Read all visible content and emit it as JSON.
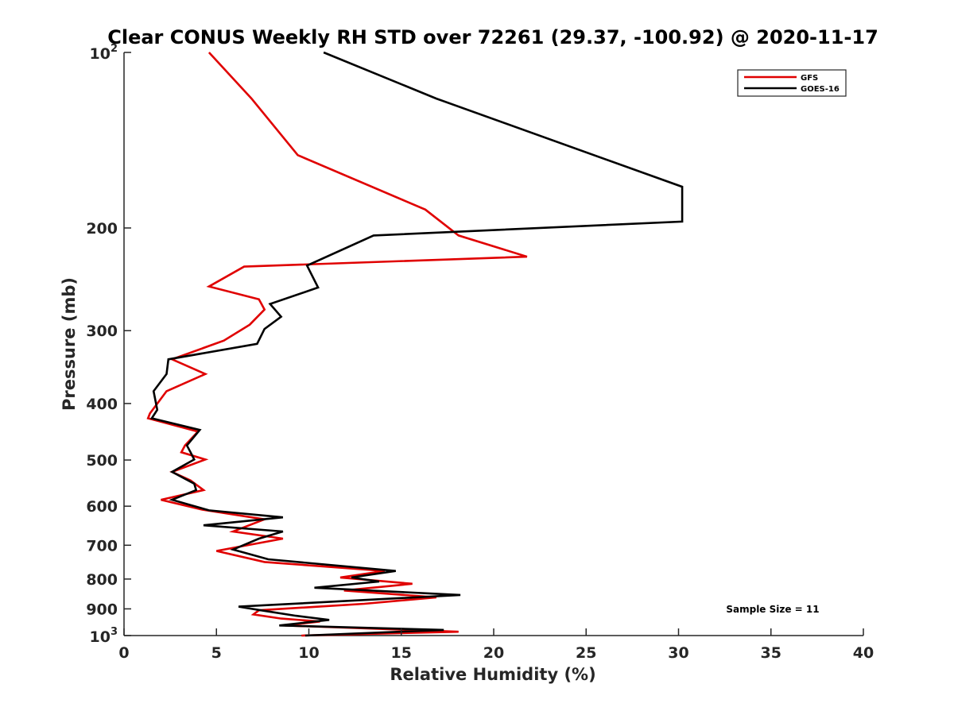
{
  "chart_data": {
    "type": "line",
    "title": "Clear CONUS Weekly RH STD over 72261 (29.37, -100.92) @ 2020-11-17",
    "xlabel": "Relative Humidity (%)",
    "ylabel": "Pressure (mb)",
    "xlim": [
      0,
      40
    ],
    "ylim": [
      100,
      1000
    ],
    "y_scale": "log",
    "y_reversed": true,
    "grid": false,
    "legend_position": "top-right",
    "x_ticks": [
      "0",
      "5",
      "10",
      "15",
      "20",
      "25",
      "30",
      "35",
      "40"
    ],
    "y_ticks": [
      {
        "value": 100,
        "base": "10",
        "exp": "2"
      },
      {
        "value": 200,
        "label": "200"
      },
      {
        "value": 300,
        "label": "300"
      },
      {
        "value": 400,
        "label": "400"
      },
      {
        "value": 500,
        "label": "500"
      },
      {
        "value": 600,
        "label": "600"
      },
      {
        "value": 700,
        "label": "700"
      },
      {
        "value": 800,
        "label": "800"
      },
      {
        "value": 900,
        "label": "900"
      },
      {
        "value": 1000,
        "base": "10",
        "exp": "3"
      }
    ],
    "annotation": "Sample Size = 11",
    "series": [
      {
        "name": "GFS",
        "color": "#e00000",
        "points": [
          [
            4.6,
            100
          ],
          [
            6.9,
            120
          ],
          [
            9.4,
            150
          ],
          [
            16.3,
            186
          ],
          [
            18.1,
            206
          ],
          [
            21.8,
            224
          ],
          [
            6.5,
            233
          ],
          [
            4.6,
            252
          ],
          [
            7.3,
            265
          ],
          [
            7.6,
            276
          ],
          [
            6.8,
            293
          ],
          [
            5.4,
            312
          ],
          [
            2.6,
            336
          ],
          [
            4.4,
            356
          ],
          [
            2.3,
            381
          ],
          [
            1.4,
            416
          ],
          [
            1.3,
            424
          ],
          [
            4.0,
            447
          ],
          [
            3.3,
            472
          ],
          [
            3.1,
            485
          ],
          [
            4.4,
            499
          ],
          [
            2.6,
            524
          ],
          [
            3.6,
            542
          ],
          [
            4.3,
            563
          ],
          [
            2.0,
            585
          ],
          [
            4.2,
            608
          ],
          [
            7.6,
            632
          ],
          [
            5.9,
            663
          ],
          [
            8.6,
            682
          ],
          [
            5.0,
            716
          ],
          [
            7.6,
            748
          ],
          [
            14.1,
            775
          ],
          [
            11.7,
            795
          ],
          [
            15.6,
            815
          ],
          [
            11.9,
            837
          ],
          [
            16.9,
            860
          ],
          [
            13.0,
            882
          ],
          [
            7.3,
            905
          ],
          [
            7.0,
            920
          ],
          [
            8.5,
            935
          ],
          [
            10.6,
            946
          ],
          [
            8.7,
            961
          ],
          [
            18.1,
            985
          ],
          [
            9.6,
            1000
          ]
        ]
      },
      {
        "name": "GOES-16",
        "color": "#000000",
        "points": [
          [
            10.8,
            100
          ],
          [
            16.9,
            120
          ],
          [
            30.2,
            170
          ],
          [
            30.2,
            195
          ],
          [
            13.5,
            206
          ],
          [
            9.9,
            232
          ],
          [
            10.5,
            253
          ],
          [
            7.9,
            270
          ],
          [
            8.5,
            284
          ],
          [
            7.6,
            298
          ],
          [
            7.2,
            316
          ],
          [
            2.4,
            336
          ],
          [
            2.3,
            356
          ],
          [
            1.6,
            381
          ],
          [
            1.8,
            410
          ],
          [
            1.5,
            424
          ],
          [
            4.1,
            444
          ],
          [
            3.4,
            472
          ],
          [
            3.6,
            485
          ],
          [
            3.8,
            499
          ],
          [
            2.6,
            524
          ],
          [
            3.8,
            549
          ],
          [
            3.9,
            563
          ],
          [
            2.6,
            585
          ],
          [
            4.6,
            610
          ],
          [
            8.6,
            627
          ],
          [
            4.3,
            647
          ],
          [
            8.6,
            663
          ],
          [
            7.3,
            682
          ],
          [
            5.9,
            712
          ],
          [
            7.8,
            740
          ],
          [
            14.7,
            775
          ],
          [
            12.3,
            795
          ],
          [
            13.8,
            808
          ],
          [
            10.3,
            828
          ],
          [
            18.2,
            852
          ],
          [
            6.2,
            892
          ],
          [
            7.4,
            905
          ],
          [
            9.3,
            925
          ],
          [
            11.1,
            940
          ],
          [
            8.4,
            961
          ],
          [
            17.3,
            978
          ],
          [
            9.8,
            1000
          ]
        ]
      }
    ]
  }
}
